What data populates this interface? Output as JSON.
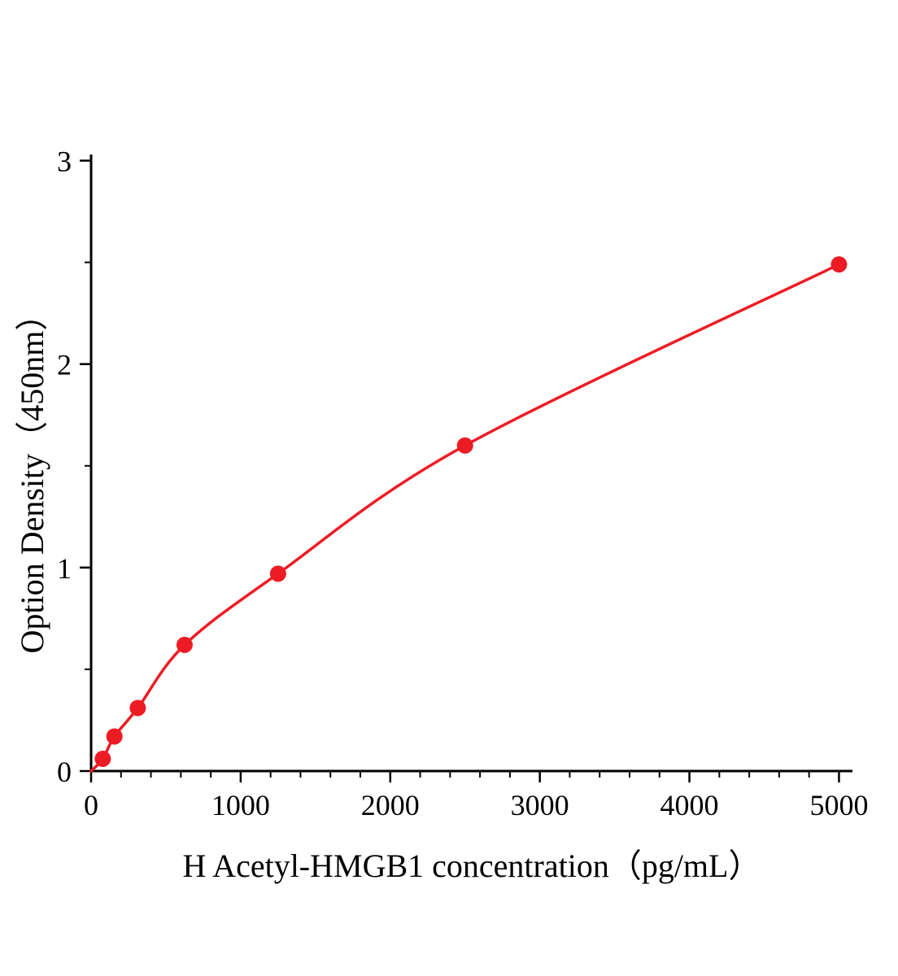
{
  "chart_data": {
    "type": "line",
    "title": "",
    "xlabel": "H Acetyl-HMGB1 concentration（pg/mL）",
    "ylabel": "Option Density（450nm）",
    "x": [
      78,
      156,
      312,
      625,
      1250,
      2500,
      5000
    ],
    "y": [
      0.06,
      0.17,
      0.31,
      0.62,
      0.97,
      1.6,
      2.49
    ],
    "curve_start": {
      "x": 0,
      "y": 0.0
    },
    "xlim": [
      0,
      5090
    ],
    "ylim": [
      0,
      3.03
    ],
    "x_major_ticks": [
      0,
      1000,
      2000,
      3000,
      4000,
      5000
    ],
    "x_minor_step": 200,
    "y_major_ticks": [
      0,
      1,
      2,
      3
    ],
    "y_minor_step": 0.5,
    "grid": false,
    "legend": "none",
    "line_color": "#ed1c24",
    "marker_color": "#ed1c24",
    "axis_color": "#000000"
  }
}
